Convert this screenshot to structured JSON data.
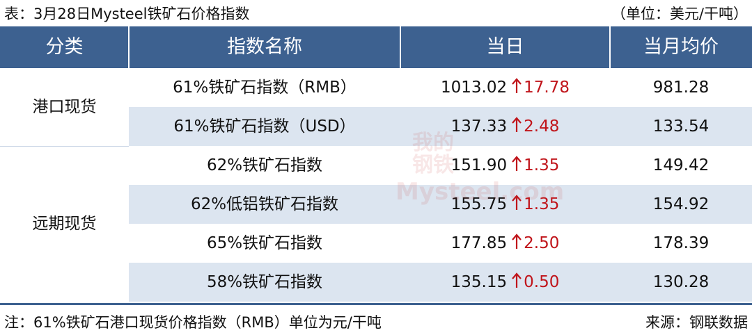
{
  "header": {
    "title": "表：3月28日Mysteel铁矿石价格指数",
    "unit": "（单位：美元/干吨）"
  },
  "table": {
    "columns": [
      "分类",
      "指数名称",
      "当日",
      "当月均价"
    ],
    "groups": [
      {
        "label": "港口现货",
        "rows": [
          {
            "name": "61%铁矿石指数（RMB）",
            "day": "1013.02",
            "change": "17.78",
            "avg": "981.28"
          },
          {
            "name": "61%铁矿石指数（USD）",
            "day": "137.33",
            "change": "2.48",
            "avg": "133.54"
          }
        ]
      },
      {
        "label": "远期现货",
        "rows": [
          {
            "name": "62%铁矿石指数",
            "day": "151.90",
            "change": "1.35",
            "avg": "149.42"
          },
          {
            "name": "62%低铝铁矿石指数",
            "day": "155.75",
            "change": "1.35",
            "avg": "154.92"
          },
          {
            "name": "65%铁矿石指数",
            "day": "177.85",
            "change": "2.50",
            "avg": "178.39"
          },
          {
            "name": "58%铁矿石指数",
            "day": "135.15",
            "change": "0.50",
            "avg": "130.28"
          }
        ]
      }
    ]
  },
  "watermark": {
    "line1": "我的",
    "line2": "钢铁",
    "line3": "Mysteel.com"
  },
  "footer": {
    "note": "注：61%铁矿石港口现货价格指数（RMB）单位为元/干吨",
    "source": "来源：钢联数据"
  }
}
